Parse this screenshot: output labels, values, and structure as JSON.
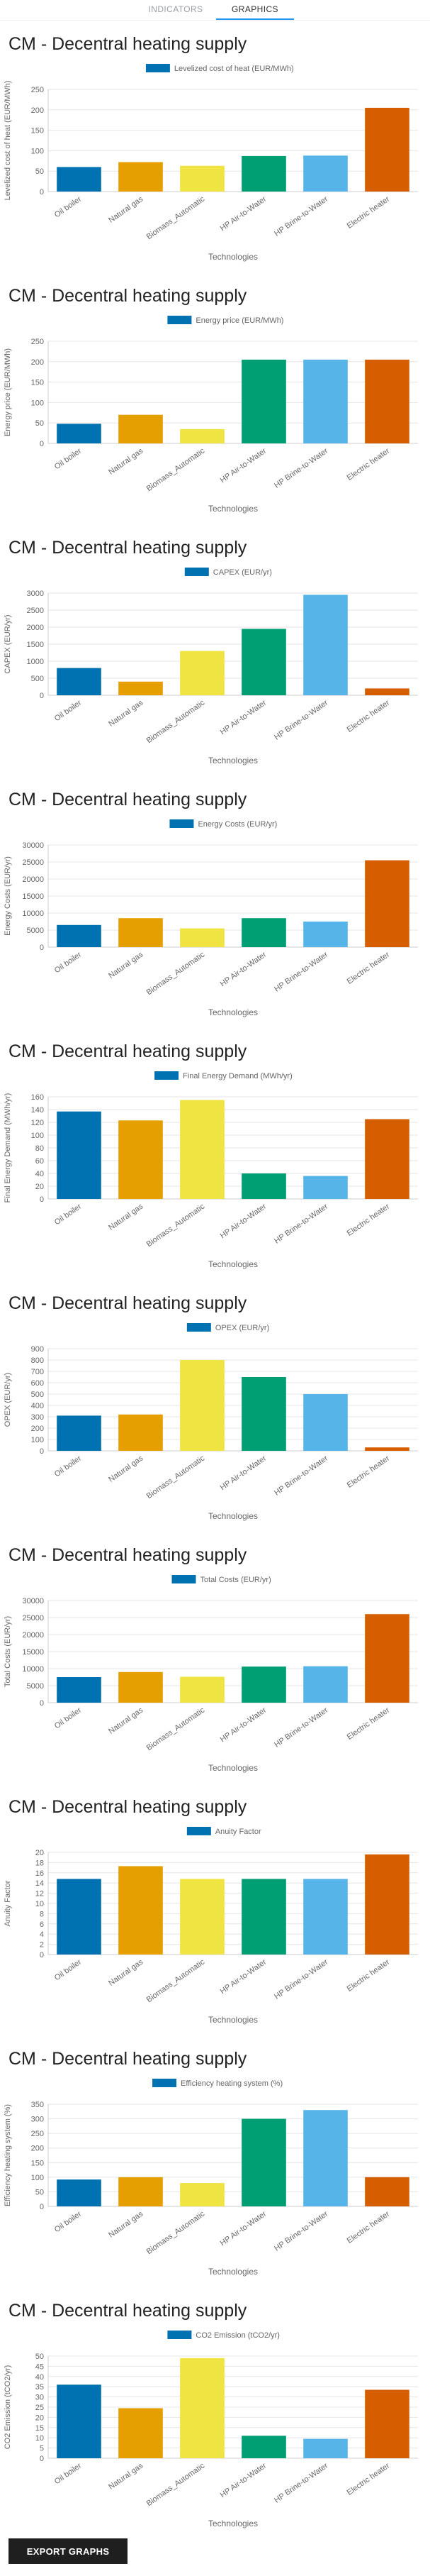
{
  "tabs": {
    "indicators": "INDICATORS",
    "graphics": "GRAPHICS"
  },
  "section_title": "CM - Decentral heating supply",
  "export_button": "EXPORT GRAPHS",
  "colors": [
    "#0072b2",
    "#e69f00",
    "#f0e442",
    "#009e73",
    "#56b4e9",
    "#d55e00"
  ],
  "chart_data": [
    {
      "type": "bar",
      "title": "",
      "legend": "Levelized cost of heat (EUR/MWh)",
      "xlabel": "Technologies",
      "ylabel": "Levelized cost of heat (EUR/MWh)",
      "categories": [
        "Oil boiler",
        "Natural gas",
        "Biomass_Automatic",
        "HP Air-to-Water",
        "HP Brine-to-Water",
        "Electric heater"
      ],
      "values": [
        60,
        72,
        63,
        87,
        88,
        205
      ],
      "ylim": [
        0,
        250
      ],
      "yticks": [
        0,
        50,
        100,
        150,
        200,
        250
      ]
    },
    {
      "type": "bar",
      "title": "",
      "legend": "Energy price (EUR/MWh)",
      "xlabel": "Technologies",
      "ylabel": "Energy price (EUR/MWh)",
      "categories": [
        "Oil boiler",
        "Natural gas",
        "Biomass_Automatic",
        "HP Air-to-Water",
        "HP Brine-to-Water",
        "Electric heater"
      ],
      "values": [
        48,
        70,
        35,
        205,
        205,
        205
      ],
      "ylim": [
        0,
        250
      ],
      "yticks": [
        0,
        50,
        100,
        150,
        200,
        250
      ]
    },
    {
      "type": "bar",
      "title": "",
      "legend": "CAPEX (EUR/yr)",
      "xlabel": "Technologies",
      "ylabel": "CAPEX (EUR/yr)",
      "categories": [
        "Oil boiler",
        "Natural gas",
        "Biomass_Automatic",
        "HP Air-to-Water",
        "HP Brine-to-Water",
        "Electric heater"
      ],
      "values": [
        800,
        400,
        1300,
        1950,
        2950,
        200
      ],
      "ylim": [
        0,
        3000
      ],
      "yticks": [
        0,
        500,
        1000,
        1500,
        2000,
        2500,
        3000
      ]
    },
    {
      "type": "bar",
      "title": "",
      "legend": "Energy Costs (EUR/yr)",
      "xlabel": "Technologies",
      "ylabel": "Energy Costs (EUR/yr)",
      "categories": [
        "Oil boiler",
        "Natural gas",
        "Biomass_Automatic",
        "HP Air-to-Water",
        "HP Brine-to-Water",
        "Electric heater"
      ],
      "values": [
        6500,
        8500,
        5500,
        8500,
        7500,
        25500
      ],
      "ylim": [
        0,
        30000
      ],
      "yticks": [
        0,
        5000,
        10000,
        15000,
        20000,
        25000,
        30000
      ]
    },
    {
      "type": "bar",
      "title": "",
      "legend": "Final Energy Demand (MWh/yr)",
      "xlabel": "Technologies",
      "ylabel": "Final Energy Demand (MWh/yr)",
      "categories": [
        "Oil boiler",
        "Natural gas",
        "Biomass_Automatic",
        "HP Air-to-Water",
        "HP Brine-to-Water",
        "Electric heater"
      ],
      "values": [
        137,
        123,
        155,
        40,
        36,
        125
      ],
      "ylim": [
        0,
        160
      ],
      "yticks": [
        0,
        20,
        40,
        60,
        80,
        100,
        120,
        140,
        160
      ]
    },
    {
      "type": "bar",
      "title": "",
      "legend": "OPEX (EUR/yr)",
      "xlabel": "Technologies",
      "ylabel": "OPEX (EUR/yr)",
      "categories": [
        "Oil boiler",
        "Natural gas",
        "Biomass_Automatic",
        "HP Air-to-Water",
        "HP Brine-to-Water",
        "Electric heater"
      ],
      "values": [
        310,
        320,
        800,
        650,
        500,
        30
      ],
      "ylim": [
        0,
        900
      ],
      "yticks": [
        0,
        100,
        200,
        300,
        400,
        500,
        600,
        700,
        800,
        900
      ]
    },
    {
      "type": "bar",
      "title": "",
      "legend": "Total Costs (EUR/yr)",
      "xlabel": "Technologies",
      "ylabel": "Total Costs (EUR/yr)",
      "categories": [
        "Oil boiler",
        "Natural gas",
        "Biomass_Automatic",
        "HP Air-to-Water",
        "HP Brine-to-Water",
        "Electric heater"
      ],
      "values": [
        7500,
        9000,
        7600,
        10600,
        10700,
        26000
      ],
      "ylim": [
        0,
        30000
      ],
      "yticks": [
        0,
        5000,
        10000,
        15000,
        20000,
        25000,
        30000
      ]
    },
    {
      "type": "bar",
      "title": "",
      "legend": "Anuity Factor",
      "xlabel": "Technologies",
      "ylabel": "Anuity Factor",
      "categories": [
        "Oil boiler",
        "Natural gas",
        "Biomass_Automatic",
        "HP Air-to-Water",
        "HP Brine-to-Water",
        "Electric heater"
      ],
      "values": [
        14.8,
        17.3,
        14.8,
        14.8,
        14.8,
        19.6
      ],
      "ylim": [
        0,
        20
      ],
      "yticks": [
        0,
        2,
        4,
        6,
        8,
        10,
        12,
        14,
        16,
        18,
        20
      ]
    },
    {
      "type": "bar",
      "title": "",
      "legend": "Efficiency heating system (%)",
      "xlabel": "Technologies",
      "ylabel": "Efficiency heating system (%)",
      "categories": [
        "Oil boiler",
        "Natural gas",
        "Biomass_Automatic",
        "HP Air-to-Water",
        "HP Brine-to-Water",
        "Electric heater"
      ],
      "values": [
        92,
        100,
        80,
        300,
        330,
        100
      ],
      "ylim": [
        0,
        350
      ],
      "yticks": [
        0,
        50,
        100,
        150,
        200,
        250,
        300,
        350
      ]
    },
    {
      "type": "bar",
      "title": "",
      "legend": "CO2 Emission (tCO2/yr)",
      "xlabel": "Technologies",
      "ylabel": "CO2 Emission (tCO2/yr)",
      "categories": [
        "Oil boiler",
        "Natural gas",
        "Biomass_Automatic",
        "HP Air-to-Water",
        "HP Brine-to-Water",
        "Electric heater"
      ],
      "values": [
        36,
        24.5,
        49,
        11,
        9.5,
        33.5
      ],
      "ylim": [
        0,
        50
      ],
      "yticks": [
        0,
        5,
        10,
        15,
        20,
        25,
        30,
        35,
        40,
        45,
        50
      ]
    }
  ]
}
